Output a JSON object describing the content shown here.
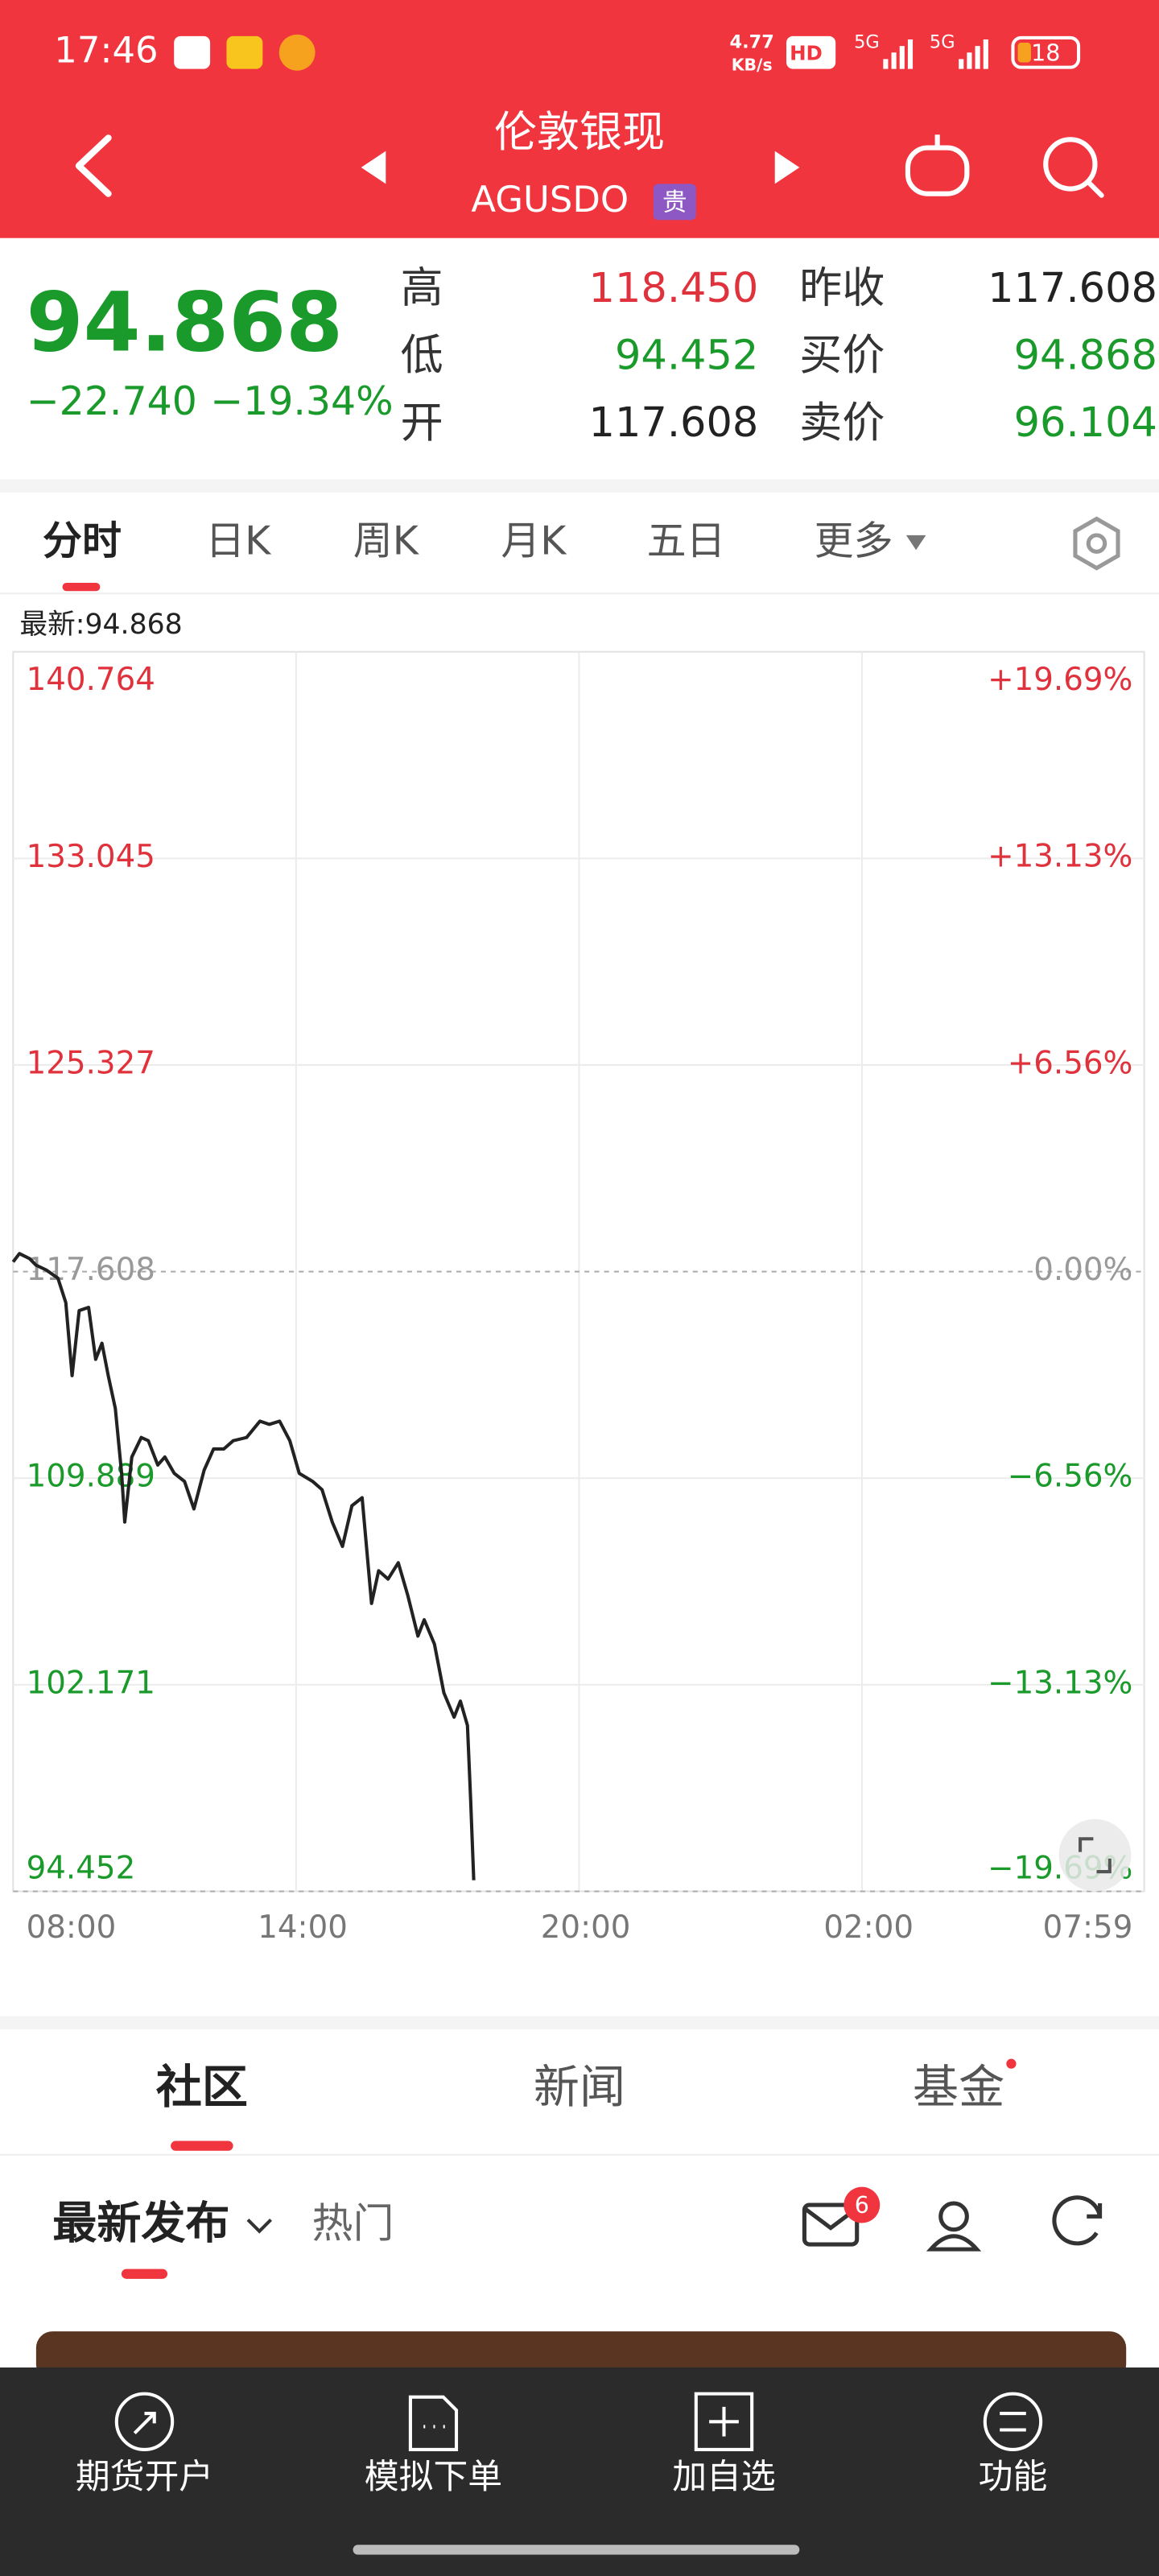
{
  "status_bar": {
    "time": "17:46",
    "net_speed_value": "4.77",
    "net_speed_unit": "KB/s",
    "hd": "HD",
    "network": [
      "5G",
      "5G"
    ],
    "battery": "18"
  },
  "header": {
    "title": "伦敦银现",
    "code": "AGUSDO",
    "badge": "贵"
  },
  "quote": {
    "price": "94.868",
    "change": "−22.740",
    "change_pct": "−19.34%",
    "stats": [
      {
        "label": "高",
        "value": "118.450",
        "color": "#e0323c"
      },
      {
        "label": "低",
        "value": "94.452",
        "color": "#1a9a2a"
      },
      {
        "label": "开",
        "value": "117.608",
        "color": "#222222"
      },
      {
        "label": "昨收",
        "value": "117.608",
        "color": "#222222"
      },
      {
        "label": "买价",
        "value": "94.868",
        "color": "#1a9a2a"
      },
      {
        "label": "卖价",
        "value": "96.104",
        "color": "#1a9a2a"
      }
    ]
  },
  "tabs": [
    "分时",
    "日K",
    "周K",
    "月K",
    "五日",
    "更多"
  ],
  "chart_data": {
    "type": "line",
    "annotation": "最新:94.868",
    "color": "#222222",
    "up_color": "#e0323c",
    "down_color": "#1a9a2a",
    "flat_color": "#999999",
    "grid": true,
    "x": [
      0,
      8,
      21,
      29,
      42,
      57,
      67,
      75,
      84,
      96,
      105,
      113,
      121,
      130,
      138,
      142,
      151,
      163,
      172,
      184,
      193,
      205,
      218,
      230,
      243,
      255,
      268,
      280,
      297,
      314,
      326,
      339,
      352,
      364,
      381,
      393,
      406,
      419,
      431,
      444,
      456,
      465,
      477,
      490,
      502,
      515,
      523,
      536,
      548,
      561,
      569,
      578,
      582,
      586
    ],
    "values": [
      117.97,
      118.28,
      118.09,
      117.85,
      117.67,
      117.36,
      116.45,
      113.72,
      116.15,
      116.27,
      114.33,
      114.93,
      113.72,
      112.5,
      110.07,
      108.25,
      110.68,
      111.41,
      111.29,
      110.38,
      110.68,
      110.07,
      109.77,
      108.74,
      110.19,
      110.98,
      110.98,
      111.29,
      111.41,
      112.02,
      111.9,
      112.02,
      111.29,
      110.07,
      109.77,
      109.46,
      108.25,
      107.34,
      108.86,
      109.16,
      105.21,
      106.43,
      106.12,
      106.73,
      105.52,
      103.99,
      104.6,
      103.69,
      101.87,
      100.96,
      101.56,
      100.65,
      97.92,
      94.868
    ],
    "xlim": [
      0,
      1439
    ],
    "xticks": [
      {
        "value": 0,
        "label": "08:00"
      },
      {
        "value": 360,
        "label": "14:00"
      },
      {
        "value": 720,
        "label": "20:00"
      },
      {
        "value": 1080,
        "label": "02:00"
      },
      {
        "value": 1439,
        "label": "07:59"
      }
    ],
    "ylim": [
      94.452,
      140.764
    ],
    "yticks": [
      94.452,
      102.171,
      109.889,
      117.608,
      125.327,
      133.045,
      140.764
    ],
    "y2lim": [
      -19.69,
      19.69
    ],
    "y2ticks": [
      {
        "value": -19.69,
        "label": "−19.69%"
      },
      {
        "value": -13.13,
        "label": "−13.13%"
      },
      {
        "value": -6.56,
        "label": "−6.56%"
      },
      {
        "value": 0,
        "label": "0.00%"
      },
      {
        "value": 6.56,
        "label": "+6.56%"
      },
      {
        "value": 13.13,
        "label": "+13.13%"
      },
      {
        "value": 19.69,
        "label": "+19.69%"
      }
    ]
  },
  "community_tabs": [
    "社区",
    "新闻",
    "基金"
  ],
  "feed_tabs": [
    "最新发布",
    "热门"
  ],
  "mail_badge": "6",
  "bottom_nav": [
    "期货开户",
    "模拟下单",
    "加自选",
    "功能"
  ]
}
